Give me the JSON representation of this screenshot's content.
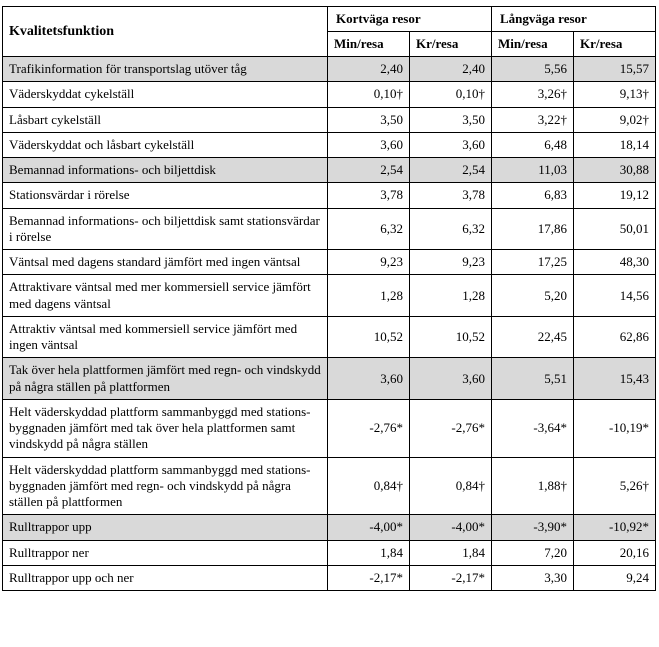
{
  "header": {
    "title": "Kvalitetsfunktion",
    "groups": [
      "Kortväga resor",
      "Långväga resor"
    ],
    "subheaders": [
      "Min/resa",
      "Kr/resa",
      "Min/resa",
      "Kr/resa"
    ]
  },
  "styling": {
    "shaded_bg": "#d9d9d9",
    "border_color": "#000000",
    "font_family": "Times New Roman",
    "label_fontsize": 13,
    "header_fontsize": 14
  },
  "rows": [
    {
      "shaded": true,
      "label": "Trafikinformation för transportslag utöver tåg",
      "k_min": "2,40",
      "k_kr": "2,40",
      "l_min": "5,56",
      "l_kr": "15,57"
    },
    {
      "shaded": false,
      "label": "Väderskyddat cykelställ",
      "k_min": "0,10†",
      "k_kr": "0,10†",
      "l_min": "3,26†",
      "l_kr": "9,13†"
    },
    {
      "shaded": false,
      "label": "Låsbart cykelställ",
      "k_min": "3,50",
      "k_kr": "3,50",
      "l_min": "3,22†",
      "l_kr": "9,02†"
    },
    {
      "shaded": false,
      "label": "Väderskyddat och låsbart cykelställ",
      "k_min": "3,60",
      "k_kr": "3,60",
      "l_min": "6,48",
      "l_kr": "18,14"
    },
    {
      "shaded": true,
      "label": "Bemannad informations- och biljettdisk",
      "k_min": "2,54",
      "k_kr": "2,54",
      "l_min": "11,03",
      "l_kr": "30,88"
    },
    {
      "shaded": false,
      "label": "Stationsvärdar i rörelse",
      "k_min": "3,78",
      "k_kr": "3,78",
      "l_min": "6,83",
      "l_kr": "19,12"
    },
    {
      "shaded": false,
      "label": "Bemannad informations- och biljettdisk samt stationsvärdar i rörelse",
      "k_min": "6,32",
      "k_kr": "6,32",
      "l_min": "17,86",
      "l_kr": "50,01"
    },
    {
      "shaded": false,
      "label": "Väntsal med dagens standard jämfört med ingen väntsal",
      "k_min": "9,23",
      "k_kr": "9,23",
      "l_min": "17,25",
      "l_kr": "48,30"
    },
    {
      "shaded": false,
      "label": "Attraktivare väntsal med mer kommersiell service jämfört med dagens väntsal",
      "k_min": "1,28",
      "k_kr": "1,28",
      "l_min": "5,20",
      "l_kr": "14,56"
    },
    {
      "shaded": false,
      "label": "Attraktiv väntsal med kommersiell service jämfört med ingen väntsal",
      "k_min": "10,52",
      "k_kr": "10,52",
      "l_min": "22,45",
      "l_kr": "62,86"
    },
    {
      "shaded": true,
      "label": "Tak över hela plattformen jämfört med regn- och vindskydd på några ställen på plattformen",
      "k_min": "3,60",
      "k_kr": "3,60",
      "l_min": "5,51",
      "l_kr": "15,43"
    },
    {
      "shaded": false,
      "label": "Helt väderskyddad plattform sammanbyggd med stations­byggnaden jämfört med tak över hela plattformen samt vind­skydd på några ställen",
      "k_min": "-2,76*",
      "k_kr": "-2,76*",
      "l_min": "-3,64*",
      "l_kr": "-10,19*"
    },
    {
      "shaded": false,
      "label": "Helt väderskyddad plattform sammanbyggd med stations­byggnaden jämfört med regn- och vindskydd på några ställen på plattformen",
      "k_min": "0,84†",
      "k_kr": "0,84†",
      "l_min": "1,88†",
      "l_kr": "5,26†"
    },
    {
      "shaded": true,
      "label": "Rulltrappor upp",
      "k_min": "-4,00*",
      "k_kr": "-4,00*",
      "l_min": "-3,90*",
      "l_kr": "-10,92*"
    },
    {
      "shaded": false,
      "label": "Rulltrappor ner",
      "k_min": "1,84",
      "k_kr": "1,84",
      "l_min": "7,20",
      "l_kr": "20,16"
    },
    {
      "shaded": false,
      "label": "Rulltrappor upp och ner",
      "k_min": "-2,17*",
      "k_kr": "-2,17*",
      "l_min": "3,30",
      "l_kr": "9,24"
    }
  ]
}
